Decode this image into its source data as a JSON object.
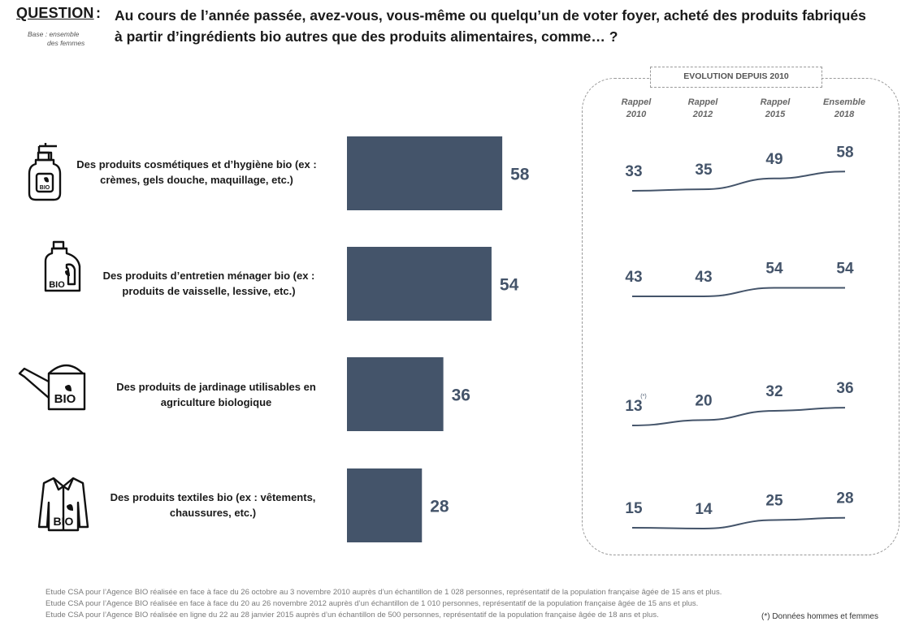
{
  "header": {
    "question_label": "QUESTION",
    "colon": ":",
    "question_text": "Au cours de l’année passée, avez-vous, vous-même ou quelqu’un de voter foyer, acheté des produits fabriqués à partir d’ingrédients bio autres que des produits alimentaires, comme… ?",
    "base_line1": "Base : ensemble",
    "base_line2": "des femmes"
  },
  "icons": {
    "cosmetics": "lotion-bottle-icon",
    "household": "detergent-jug-icon",
    "gardening": "watering-can-icon",
    "textiles": "shirt-icon",
    "badge_text": "BIO"
  },
  "chart_data": [
    {
      "type": "bar",
      "orientation": "horizontal",
      "categories": [
        "Des produits cosmétiques et d’hygiène bio (ex : crèmes, gels douche, maquillage, etc.)",
        "Des produits d’entretien ménager bio (ex : produits de vaisselle, lessive, etc.)",
        "Des produits de jardinage utilisables en agriculture biologique",
        "Des produits textiles bio (ex : vêtements, chaussures, etc.)"
      ],
      "category_lines": [
        [
          "Des produits cosmétiques et d’hygiène bio (ex :",
          "crèmes, gels douche, maquillage, etc.)"
        ],
        [
          "Des produits d’entretien ménager bio (ex :",
          "produits de vaisselle, lessive, etc.)"
        ],
        [
          "Des produits de jardinage utilisables en",
          "agriculture biologique"
        ],
        [
          "Des produits textiles bio (ex : vêtements,",
          "chaussures, etc.)"
        ]
      ],
      "values": [
        58,
        54,
        36,
        28
      ],
      "color": "#44546a",
      "data_labels": true,
      "grid": false
    },
    {
      "type": "line",
      "title": "EVOLUTION DEPUIS 2010",
      "x": [
        "Rappel 2010",
        "Rappel 2012",
        "Rappel 2015",
        "Ensemble 2018"
      ],
      "x_lines": [
        [
          "Rappel",
          "2010"
        ],
        [
          "Rappel",
          "2012"
        ],
        [
          "Rappel",
          "2015"
        ],
        [
          "Ensemble",
          "2018"
        ]
      ],
      "series": [
        {
          "values": [
            33,
            35,
            49,
            58
          ]
        },
        {
          "values": [
            43,
            43,
            54,
            54
          ]
        },
        {
          "values": [
            13,
            20,
            32,
            36
          ],
          "note": "(*)"
        },
        {
          "values": [
            15,
            14,
            25,
            28
          ]
        }
      ],
      "color": "#44546a",
      "data_labels": true,
      "grid": false
    }
  ],
  "footer": {
    "sources": [
      "Etude CSA pour l’Agence BIO réalisée en face à face du 26 octobre au 3 novembre 2010 auprès d’un échantillon de 1 028 personnes, représentatif de la population française âgée de 15 ans et plus.",
      "Etude CSA pour l’Agence BIO réalisée en face à face du 20 au 26  novembre 2012 auprès d’un échantillon de 1 010 personnes, représentatif de la population française âgée de 15 ans et plus.",
      "Etude CSA pour l’Agence BIO réalisée en ligne du 22 au 28 janvier 2015 auprès d’un échantillon de 500 personnes, représentatif de la population française âgée de 18 ans et plus."
    ],
    "footnote": "(*) Données hommes et femmes"
  }
}
